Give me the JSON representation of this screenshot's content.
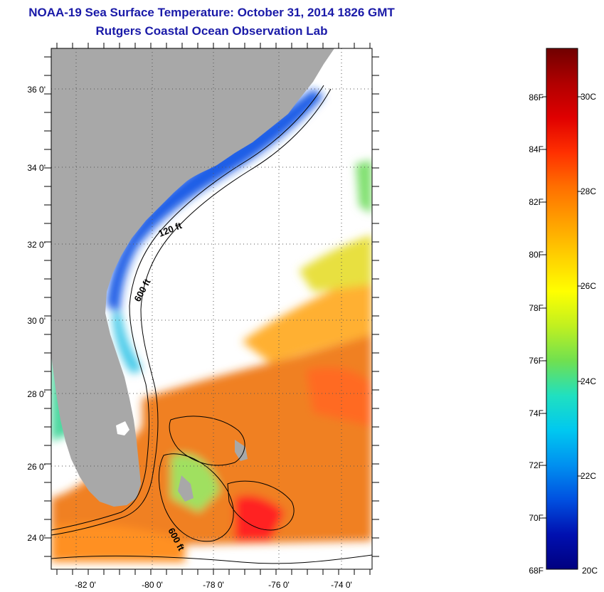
{
  "title": "NOAA-19 Sea Surface Temperature:  October 31, 2014 1826 GMT",
  "subtitle": "Rutgers Coastal Ocean Observation Lab",
  "map": {
    "lon_ticks": [
      "-82 0'",
      "-80 0'",
      "-78 0'",
      "-76 0'",
      "-74 0'"
    ],
    "lat_ticks": [
      "36 0'",
      "34 0'",
      "32 0'",
      "30 0'",
      "28 0'",
      "26 0'",
      "24 0'"
    ],
    "contour_labels": [
      "120 ft",
      "600 ft",
      "600 ft"
    ],
    "colors": {
      "land": "#a8a8a8",
      "ocean_no_data": "#ffffff"
    }
  },
  "colorbar": {
    "f_labels": [
      "86F",
      "84F",
      "82F",
      "80F",
      "78F",
      "76F",
      "74F",
      "72F",
      "70F",
      "68F"
    ],
    "c_labels": [
      "30C",
      "28C",
      "26C",
      "24C",
      "22C",
      "20C"
    ],
    "colors": [
      "#700000",
      "#b00000",
      "#e00000",
      "#ff3000",
      "#ff7000",
      "#ffa000",
      "#ffd000",
      "#ffff00",
      "#c0f020",
      "#70e050",
      "#20e0c0",
      "#00c8f0",
      "#0090f0",
      "#0050e0",
      "#0010b0",
      "#000080"
    ]
  }
}
